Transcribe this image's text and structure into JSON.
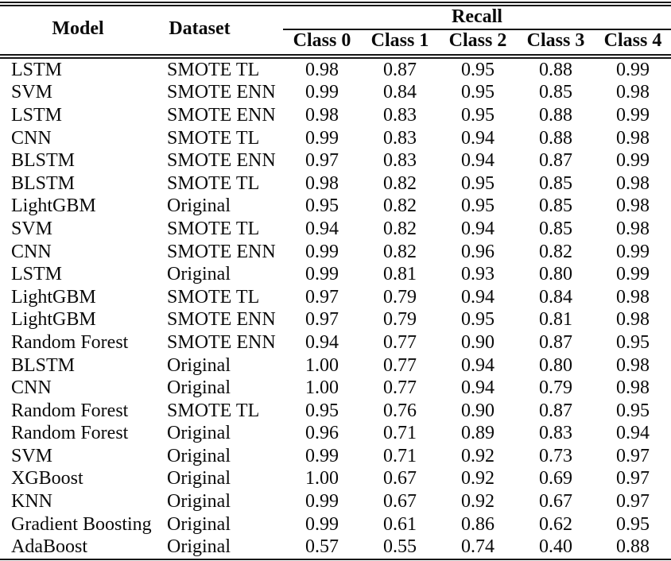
{
  "table": {
    "header": {
      "model": "Model",
      "dataset": "Dataset",
      "recall_group": "Recall",
      "class_headers": [
        "Class 0",
        "Class 1",
        "Class 2",
        "Class 3",
        "Class 4"
      ]
    },
    "rows": [
      {
        "model": "LSTM",
        "dataset": "SMOTE TL",
        "recall": [
          "0.98",
          "0.87",
          "0.95",
          "0.88",
          "0.99"
        ]
      },
      {
        "model": "SVM",
        "dataset": "SMOTE ENN",
        "recall": [
          "0.99",
          "0.84",
          "0.95",
          "0.85",
          "0.98"
        ]
      },
      {
        "model": "LSTM",
        "dataset": "SMOTE ENN",
        "recall": [
          "0.98",
          "0.83",
          "0.95",
          "0.88",
          "0.99"
        ]
      },
      {
        "model": "CNN",
        "dataset": "SMOTE TL",
        "recall": [
          "0.99",
          "0.83",
          "0.94",
          "0.88",
          "0.98"
        ]
      },
      {
        "model": "BLSTM",
        "dataset": "SMOTE ENN",
        "recall": [
          "0.97",
          "0.83",
          "0.94",
          "0.87",
          "0.99"
        ]
      },
      {
        "model": "BLSTM",
        "dataset": "SMOTE TL",
        "recall": [
          "0.98",
          "0.82",
          "0.95",
          "0.85",
          "0.98"
        ]
      },
      {
        "model": "LightGBM",
        "dataset": "Original",
        "recall": [
          "0.95",
          "0.82",
          "0.95",
          "0.85",
          "0.98"
        ]
      },
      {
        "model": "SVM",
        "dataset": "SMOTE TL",
        "recall": [
          "0.94",
          "0.82",
          "0.94",
          "0.85",
          "0.98"
        ]
      },
      {
        "model": "CNN",
        "dataset": "SMOTE ENN",
        "recall": [
          "0.99",
          "0.82",
          "0.96",
          "0.82",
          "0.99"
        ]
      },
      {
        "model": "LSTM",
        "dataset": "Original",
        "recall": [
          "0.99",
          "0.81",
          "0.93",
          "0.80",
          "0.99"
        ]
      },
      {
        "model": "LightGBM",
        "dataset": "SMOTE TL",
        "recall": [
          "0.97",
          "0.79",
          "0.94",
          "0.84",
          "0.98"
        ]
      },
      {
        "model": "LightGBM",
        "dataset": "SMOTE ENN",
        "recall": [
          "0.97",
          "0.79",
          "0.95",
          "0.81",
          "0.98"
        ]
      },
      {
        "model": "Random Forest",
        "dataset": "SMOTE ENN",
        "recall": [
          "0.94",
          "0.77",
          "0.90",
          "0.87",
          "0.95"
        ]
      },
      {
        "model": "BLSTM",
        "dataset": "Original",
        "recall": [
          "1.00",
          "0.77",
          "0.94",
          "0.80",
          "0.98"
        ]
      },
      {
        "model": "CNN",
        "dataset": "Original",
        "recall": [
          "1.00",
          "0.77",
          "0.94",
          "0.79",
          "0.98"
        ]
      },
      {
        "model": "Random Forest",
        "dataset": "SMOTE TL",
        "recall": [
          "0.95",
          "0.76",
          "0.90",
          "0.87",
          "0.95"
        ]
      },
      {
        "model": "Random Forest",
        "dataset": "Original",
        "recall": [
          "0.96",
          "0.71",
          "0.89",
          "0.83",
          "0.94"
        ]
      },
      {
        "model": "SVM",
        "dataset": "Original",
        "recall": [
          "0.99",
          "0.71",
          "0.92",
          "0.73",
          "0.97"
        ]
      },
      {
        "model": "XGBoost",
        "dataset": "Original",
        "recall": [
          "1.00",
          "0.67",
          "0.92",
          "0.69",
          "0.97"
        ]
      },
      {
        "model": "KNN",
        "dataset": "Original",
        "recall": [
          "0.99",
          "0.67",
          "0.92",
          "0.67",
          "0.97"
        ]
      },
      {
        "model": "Gradient Boosting",
        "dataset": "Original",
        "recall": [
          "0.99",
          "0.61",
          "0.86",
          "0.62",
          "0.95"
        ]
      },
      {
        "model": "AdaBoost",
        "dataset": "Original",
        "recall": [
          "0.57",
          "0.55",
          "0.74",
          "0.40",
          "0.88"
        ]
      }
    ]
  },
  "colors": {
    "background": "#ffffff",
    "text": "#0a0a0a",
    "rule": "#161616"
  }
}
